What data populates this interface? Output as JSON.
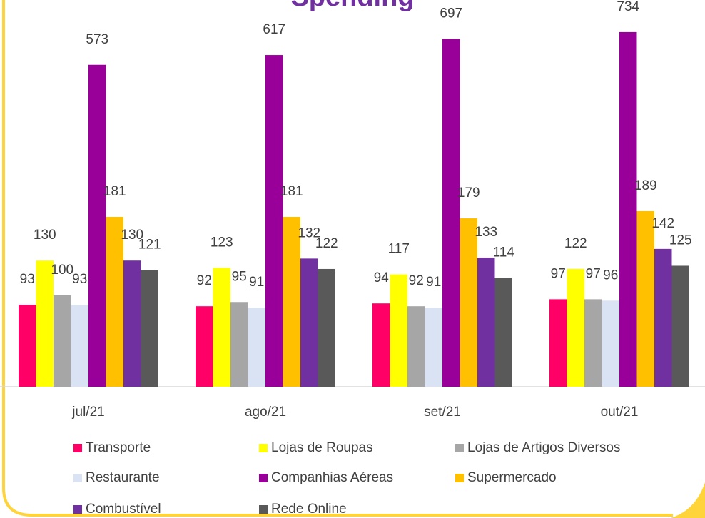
{
  "chart_data": {
    "type": "bar",
    "title": "Spending",
    "categories": [
      "jul/21",
      "ago/21",
      "set/21",
      "out/21"
    ],
    "series": [
      {
        "name": "Transporte",
        "color": "#ff0066",
        "values": [
          93,
          92,
          94,
          97
        ]
      },
      {
        "name": "Lojas de Roupas",
        "color": "#ffff00",
        "values": [
          130,
          123,
          117,
          122
        ]
      },
      {
        "name": "Lojas de Artigos Diversos",
        "color": "#a6a6a6",
        "values": [
          100,
          95,
          92,
          97
        ]
      },
      {
        "name": "Restaurante",
        "color": "#dae3f3",
        "values": [
          93,
          91,
          91,
          96
        ]
      },
      {
        "name": "Companhias Aéreas",
        "color": "#990099",
        "values": [
          573,
          617,
          697,
          734
        ]
      },
      {
        "name": "Supermercado",
        "color": "#ffc000",
        "values": [
          181,
          181,
          179,
          189
        ]
      },
      {
        "name": "Combustível",
        "color": "#7030a0",
        "values": [
          130,
          132,
          133,
          142
        ]
      },
      {
        "name": "Rede Online",
        "color": "#595959",
        "values": [
          121,
          122,
          114,
          125
        ]
      }
    ],
    "ylim": [
      50,
      800
    ],
    "log_scale": true,
    "legend": "bottom"
  }
}
